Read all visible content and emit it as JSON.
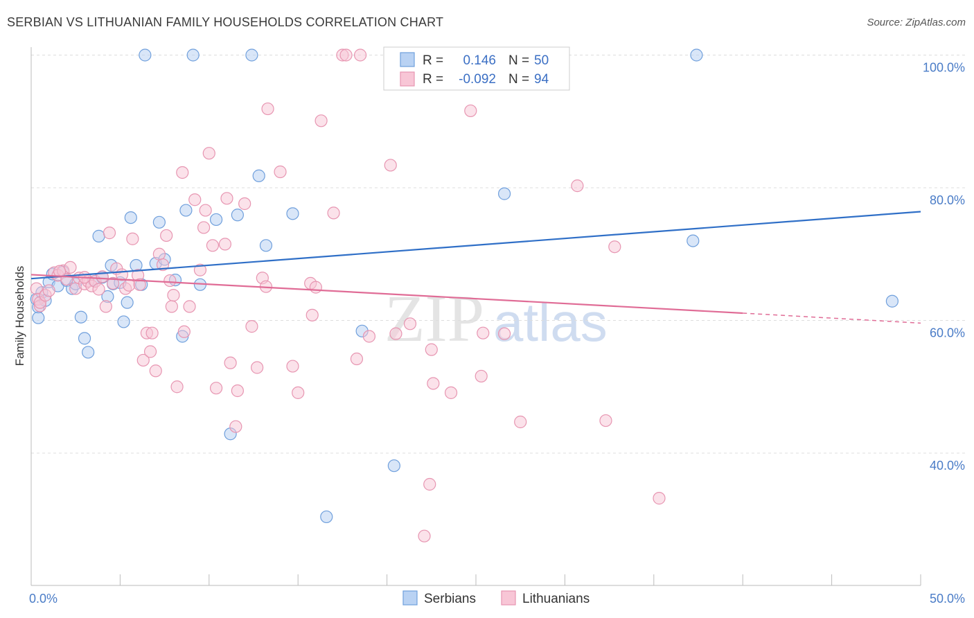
{
  "title": "SERBIAN VS LITHUANIAN FAMILY HOUSEHOLDS CORRELATION CHART",
  "source": "Source: ZipAtlas.com",
  "watermark": {
    "zip": "ZIP",
    "atlas": "atlas"
  },
  "colors": {
    "serbians_fill": "#b9d2f3",
    "serbians_stroke": "#6f9fdc",
    "serbians_line": "#2f6fc7",
    "lithuanians_fill": "#f8c6d6",
    "lithuanians_stroke": "#e795b1",
    "lithuanians_line": "#e06c96",
    "grid": "#dddddd",
    "tick_text": "#4a7cc7"
  },
  "legend": {
    "r_label": "R =",
    "n_label": "N =",
    "serbians": {
      "r": "0.146",
      "n": "50"
    },
    "lithuanians": {
      "r": "-0.092",
      "n": "94"
    }
  },
  "chart_data": {
    "type": "scatter",
    "title": "SERBIAN VS LITHUANIAN FAMILY HOUSEHOLDS CORRELATION CHART",
    "xlabel": "",
    "ylabel": "Family Households",
    "xlim": [
      0,
      50
    ],
    "ylim": [
      22,
      103
    ],
    "x_tick_labels": [
      "0.0%",
      "50.0%"
    ],
    "y_ticks": [
      40,
      60,
      80,
      100
    ],
    "y_tick_labels": [
      "40.0%",
      "60.0%",
      "80.0%",
      "100.0%"
    ],
    "legend_position": "top-center",
    "series": [
      {
        "name": "Serbians",
        "r": 0.146,
        "n": 50,
        "trend": {
          "x": [
            0,
            50
          ],
          "y": [
            66.3,
            76.4
          ]
        },
        "points": [
          [
            0.3,
            63.2
          ],
          [
            0.4,
            62.0
          ],
          [
            0.4,
            60.4
          ],
          [
            0.6,
            64.2
          ],
          [
            0.8,
            63.0
          ],
          [
            1.0,
            65.8
          ],
          [
            1.2,
            67.0
          ],
          [
            1.5,
            65.2
          ],
          [
            1.8,
            67.3
          ],
          [
            2.0,
            66.0
          ],
          [
            2.3,
            64.8
          ],
          [
            2.5,
            65.5
          ],
          [
            2.8,
            60.5
          ],
          [
            3.0,
            57.3
          ],
          [
            3.2,
            55.2
          ],
          [
            3.5,
            66.1
          ],
          [
            3.8,
            72.7
          ],
          [
            4.0,
            66.5
          ],
          [
            4.3,
            63.6
          ],
          [
            4.5,
            68.3
          ],
          [
            4.6,
            65.5
          ],
          [
            5.0,
            65.7
          ],
          [
            5.2,
            59.8
          ],
          [
            5.4,
            62.7
          ],
          [
            5.6,
            75.5
          ],
          [
            5.9,
            68.3
          ],
          [
            6.2,
            65.4
          ],
          [
            6.4,
            100.0
          ],
          [
            7.0,
            68.6
          ],
          [
            7.2,
            74.8
          ],
          [
            7.5,
            69.2
          ],
          [
            8.1,
            66.1
          ],
          [
            8.5,
            57.6
          ],
          [
            8.7,
            76.6
          ],
          [
            9.1,
            100.0
          ],
          [
            9.5,
            65.4
          ],
          [
            10.4,
            75.2
          ],
          [
            11.2,
            42.9
          ],
          [
            11.6,
            75.9
          ],
          [
            12.4,
            100.0
          ],
          [
            12.8,
            81.8
          ],
          [
            13.2,
            71.3
          ],
          [
            14.7,
            76.1
          ],
          [
            16.6,
            30.4
          ],
          [
            18.6,
            58.4
          ],
          [
            20.4,
            38.1
          ],
          [
            26.6,
            79.1
          ],
          [
            37.2,
            72.0
          ],
          [
            37.4,
            100.0
          ],
          [
            48.4,
            62.9
          ]
        ]
      },
      {
        "name": "Lithuanians",
        "r": -0.092,
        "n": 94,
        "trend": {
          "x": [
            0,
            40
          ],
          "y": [
            66.9,
            61.1
          ]
        },
        "trend_dashed": {
          "x": [
            40,
            50
          ],
          "y": [
            61.1,
            59.6
          ]
        },
        "points": [
          [
            0.3,
            64.8
          ],
          [
            0.4,
            63.2
          ],
          [
            0.5,
            62.2
          ],
          [
            0.5,
            62.7
          ],
          [
            0.8,
            63.8
          ],
          [
            1.0,
            64.5
          ],
          [
            1.3,
            67.2
          ],
          [
            1.5,
            66.8
          ],
          [
            1.8,
            67.5
          ],
          [
            2.0,
            66.2
          ],
          [
            2.2,
            68.0
          ],
          [
            2.5,
            64.8
          ],
          [
            2.7,
            66.4
          ],
          [
            3.0,
            65.5
          ],
          [
            3.2,
            65.9
          ],
          [
            3.4,
            65.2
          ],
          [
            3.6,
            65.9
          ],
          [
            3.8,
            64.7
          ],
          [
            4.0,
            66.6
          ],
          [
            4.2,
            62.1
          ],
          [
            4.4,
            73.2
          ],
          [
            4.6,
            65.6
          ],
          [
            4.8,
            67.8
          ],
          [
            5.1,
            66.9
          ],
          [
            5.3,
            64.8
          ],
          [
            5.5,
            65.3
          ],
          [
            5.7,
            72.3
          ],
          [
            6.0,
            66.8
          ],
          [
            6.1,
            65.4
          ],
          [
            6.3,
            54.0
          ],
          [
            6.5,
            58.1
          ],
          [
            6.7,
            55.3
          ],
          [
            6.8,
            58.1
          ],
          [
            7.0,
            52.4
          ],
          [
            7.2,
            70.0
          ],
          [
            7.4,
            68.4
          ],
          [
            7.6,
            72.8
          ],
          [
            7.8,
            66.0
          ],
          [
            7.9,
            62.1
          ],
          [
            8.0,
            63.8
          ],
          [
            8.2,
            50.0
          ],
          [
            8.5,
            82.3
          ],
          [
            8.6,
            58.3
          ],
          [
            8.9,
            62.1
          ],
          [
            9.2,
            78.2
          ],
          [
            9.5,
            67.6
          ],
          [
            9.7,
            74.0
          ],
          [
            9.8,
            76.6
          ],
          [
            10.0,
            85.2
          ],
          [
            10.2,
            71.3
          ],
          [
            10.4,
            49.8
          ],
          [
            10.9,
            71.5
          ],
          [
            11.0,
            78.4
          ],
          [
            11.2,
            53.6
          ],
          [
            11.5,
            44.0
          ],
          [
            11.6,
            49.4
          ],
          [
            12.0,
            77.6
          ],
          [
            12.4,
            59.1
          ],
          [
            12.7,
            52.9
          ],
          [
            13.0,
            66.4
          ],
          [
            13.2,
            65.1
          ],
          [
            13.3,
            91.9
          ],
          [
            14.0,
            82.4
          ],
          [
            14.7,
            53.1
          ],
          [
            15.0,
            49.1
          ],
          [
            15.7,
            65.6
          ],
          [
            15.8,
            60.8
          ],
          [
            16.3,
            90.1
          ],
          [
            17.0,
            76.2
          ],
          [
            17.5,
            100.0
          ],
          [
            17.7,
            100.0
          ],
          [
            18.3,
            54.2
          ],
          [
            18.5,
            100.0
          ],
          [
            19.0,
            57.6
          ],
          [
            20.2,
            83.4
          ],
          [
            20.5,
            58.0
          ],
          [
            21.3,
            59.5
          ],
          [
            22.1,
            27.5
          ],
          [
            22.4,
            35.3
          ],
          [
            22.5,
            55.6
          ],
          [
            22.6,
            50.5
          ],
          [
            23.6,
            49.1
          ],
          [
            24.7,
            91.6
          ],
          [
            25.3,
            51.6
          ],
          [
            26.6,
            58.0
          ],
          [
            27.5,
            44.7
          ],
          [
            30.7,
            80.3
          ],
          [
            32.3,
            44.9
          ],
          [
            32.8,
            71.1
          ],
          [
            35.3,
            33.2
          ],
          [
            25.4,
            58.1
          ],
          [
            16.0,
            65.0
          ],
          [
            3.0,
            66.5
          ],
          [
            1.6,
            67.4
          ]
        ]
      }
    ]
  },
  "bottom_legend": {
    "serbians": "Serbians",
    "lithuanians": "Lithuanians"
  }
}
